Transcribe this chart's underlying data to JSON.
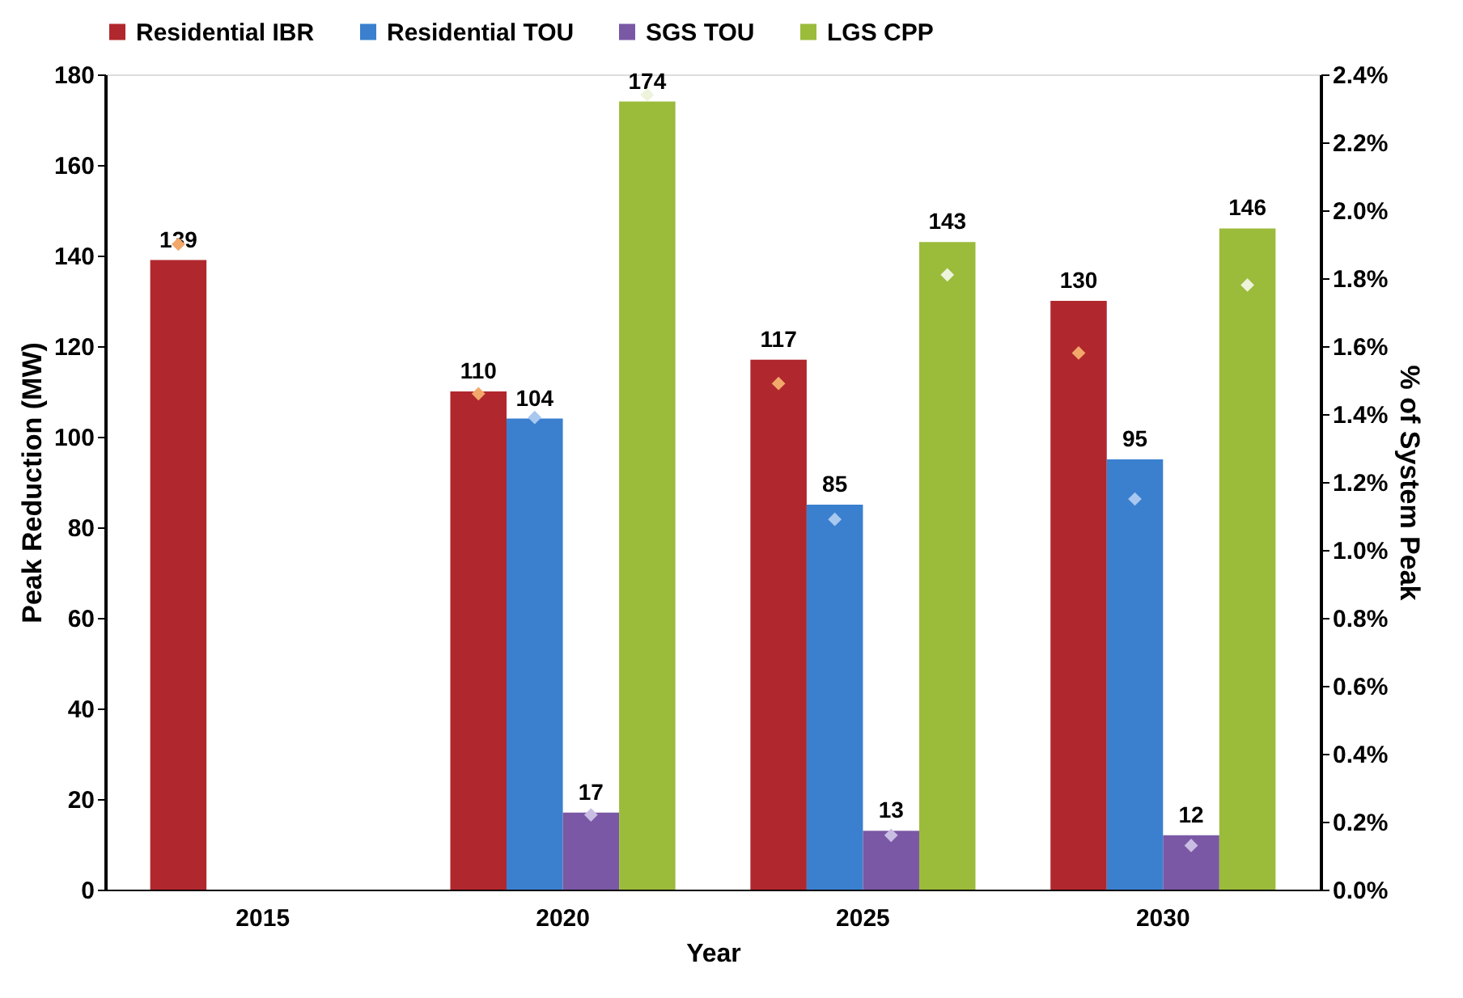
{
  "chart_data": {
    "type": "bar",
    "xlabel": "Year",
    "ylabel": "Peak Reduction (MW)",
    "y2label": "% of System Peak",
    "categories": [
      "2015",
      "2020",
      "2025",
      "2030"
    ],
    "series": [
      {
        "name": "Residential IBR",
        "color": "#b0282d",
        "values": [
          139,
          110,
          117,
          130
        ],
        "value_labels": [
          "139",
          "110",
          "117",
          "130"
        ]
      },
      {
        "name": "Residential TOU",
        "color": "#3a80cf",
        "values": [
          null,
          104,
          85,
          95
        ],
        "value_labels": [
          null,
          "104",
          "85",
          "95"
        ]
      },
      {
        "name": "SGS TOU",
        "color": "#7a58a5",
        "values": [
          null,
          17,
          13,
          12
        ],
        "value_labels": [
          null,
          "17",
          "13",
          "12"
        ]
      },
      {
        "name": "LGS CPP",
        "color": "#9bbb3b",
        "values": [
          null,
          174,
          143,
          146
        ],
        "value_labels": [
          null,
          "174",
          "143",
          "146"
        ]
      },
      {
        "type": "scatter",
        "axis": "y2",
        "marker": "diamond",
        "color": "#f2a86a",
        "values": [
          1.9,
          1.46,
          1.49,
          1.58
        ]
      },
      {
        "type": "scatter",
        "axis": "y2",
        "marker": "diamond",
        "color": "#a9c8ef",
        "values": [
          null,
          1.39,
          1.09,
          1.15
        ]
      },
      {
        "type": "scatter",
        "axis": "y2",
        "marker": "diamond",
        "color": "#c9bde3",
        "values": [
          null,
          0.22,
          0.16,
          0.13
        ]
      },
      {
        "type": "scatter",
        "axis": "y2",
        "marker": "diamond",
        "color": "#eef3dc",
        "values": [
          null,
          2.34,
          1.81,
          1.78
        ]
      }
    ],
    "ylim": [
      0,
      180
    ],
    "yticks": [
      0,
      20,
      40,
      60,
      80,
      100,
      120,
      140,
      160,
      180
    ],
    "y2lim": [
      0,
      2.4
    ],
    "y2ticks": [
      {
        "value": 0,
        "label": "0.0%"
      },
      {
        "value": 0.2,
        "label": "0.2%"
      },
      {
        "value": 0.4,
        "label": "0.4%"
      },
      {
        "value": 0.6,
        "label": "0.6%"
      },
      {
        "value": 0.8,
        "label": "0.8%"
      },
      {
        "value": 1.0,
        "label": "1.0%"
      },
      {
        "value": 1.2,
        "label": "1.2%"
      },
      {
        "value": 1.4,
        "label": "1.4%"
      },
      {
        "value": 1.6,
        "label": "1.6%"
      },
      {
        "value": 1.8,
        "label": "1.8%"
      },
      {
        "value": 2.0,
        "label": "2.0%"
      },
      {
        "value": 2.2,
        "label": "2.2%"
      },
      {
        "value": 2.4,
        "label": "2.4%"
      }
    ],
    "grid": false,
    "legend": "top"
  }
}
